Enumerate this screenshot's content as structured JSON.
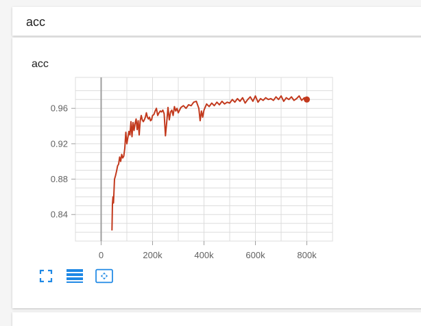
{
  "header": {
    "title": "acc"
  },
  "card": {
    "title": "acc"
  },
  "colors": {
    "line": "#c2391d",
    "grid": "#dcdcdc",
    "zero_line": "#9e9e9e",
    "icon": "#1e88e5"
  },
  "toolbar": {
    "buttons": [
      {
        "name": "fullscreen",
        "icon": "expand-icon"
      },
      {
        "name": "toggle-log-scale",
        "icon": "list-lines-icon"
      },
      {
        "name": "fit-domain",
        "icon": "fit-to-data-icon"
      }
    ]
  },
  "chart_data": {
    "type": "line",
    "title": "acc",
    "xlabel": "",
    "ylabel": "",
    "xlim": [
      -100000,
      900000
    ],
    "ylim": [
      0.81,
      0.995
    ],
    "x_ticks": [
      0,
      200000,
      400000,
      600000,
      800000
    ],
    "x_tick_labels": [
      "0",
      "200k",
      "400k",
      "600k",
      "800k"
    ],
    "y_ticks": [
      0.84,
      0.88,
      0.92,
      0.96
    ],
    "y_tick_labels": [
      "0.84",
      "0.88",
      "0.92",
      "0.96"
    ],
    "grid": true,
    "series": [
      {
        "name": "",
        "x": [
          42000,
          44000,
          46000,
          48000,
          52000,
          56000,
          60000,
          64000,
          68000,
          72000,
          76000,
          80000,
          84000,
          88000,
          92000,
          96000,
          100000,
          104000,
          108000,
          112000,
          116000,
          120000,
          124000,
          128000,
          132000,
          136000,
          140000,
          144000,
          148000,
          152000,
          156000,
          160000,
          164000,
          168000,
          172000,
          176000,
          180000,
          184000,
          188000,
          192000,
          196000,
          200000,
          205000,
          210000,
          215000,
          220000,
          225000,
          230000,
          235000,
          240000,
          245000,
          250000,
          255000,
          260000,
          265000,
          270000,
          275000,
          280000,
          285000,
          290000,
          295000,
          300000,
          310000,
          320000,
          330000,
          340000,
          350000,
          360000,
          370000,
          380000,
          385000,
          390000,
          395000,
          400000,
          410000,
          420000,
          430000,
          440000,
          450000,
          460000,
          470000,
          480000,
          490000,
          500000,
          510000,
          520000,
          530000,
          540000,
          550000,
          560000,
          570000,
          580000,
          590000,
          600000,
          610000,
          620000,
          630000,
          640000,
          650000,
          660000,
          670000,
          680000,
          690000,
          700000,
          710000,
          720000,
          730000,
          740000,
          750000,
          760000,
          770000,
          780000,
          790000,
          800000
        ],
        "y": [
          0.822,
          0.852,
          0.86,
          0.853,
          0.88,
          0.884,
          0.889,
          0.895,
          0.897,
          0.905,
          0.9,
          0.908,
          0.904,
          0.906,
          0.915,
          0.933,
          0.92,
          0.927,
          0.934,
          0.93,
          0.945,
          0.928,
          0.944,
          0.935,
          0.943,
          0.948,
          0.936,
          0.946,
          0.93,
          0.946,
          0.952,
          0.947,
          0.945,
          0.947,
          0.95,
          0.955,
          0.95,
          0.948,
          0.95,
          0.946,
          0.947,
          0.952,
          0.953,
          0.957,
          0.96,
          0.952,
          0.955,
          0.957,
          0.956,
          0.958,
          0.954,
          0.929,
          0.944,
          0.961,
          0.947,
          0.956,
          0.958,
          0.952,
          0.962,
          0.957,
          0.96,
          0.955,
          0.961,
          0.963,
          0.96,
          0.964,
          0.963,
          0.967,
          0.968,
          0.96,
          0.946,
          0.957,
          0.95,
          0.958,
          0.965,
          0.962,
          0.966,
          0.963,
          0.967,
          0.964,
          0.968,
          0.965,
          0.967,
          0.966,
          0.97,
          0.967,
          0.971,
          0.968,
          0.972,
          0.966,
          0.97,
          0.973,
          0.968,
          0.974,
          0.967,
          0.971,
          0.969,
          0.972,
          0.97,
          0.971,
          0.969,
          0.973,
          0.97,
          0.974,
          0.968,
          0.972,
          0.97,
          0.973,
          0.969,
          0.971,
          0.974,
          0.969,
          0.972,
          0.97
        ]
      }
    ]
  }
}
